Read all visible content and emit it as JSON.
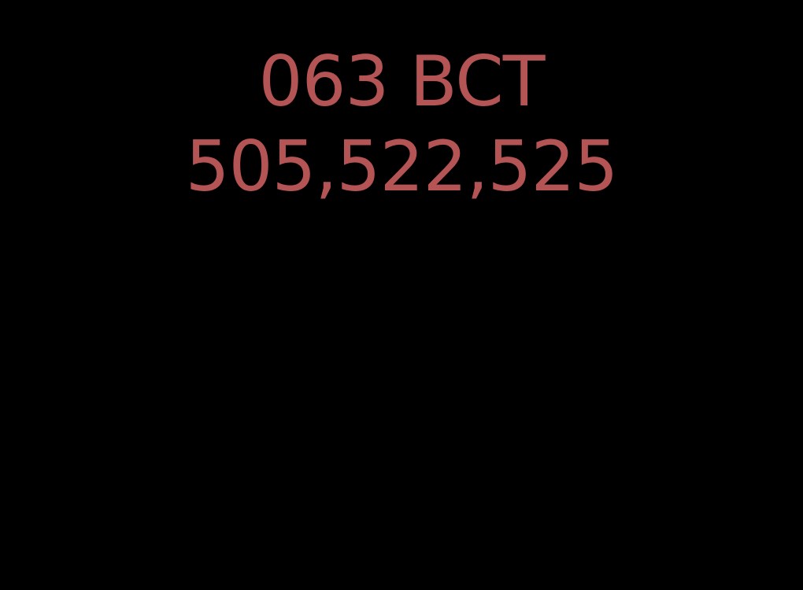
{
  "display": {
    "line_1": "063 BCT",
    "line_2": "505,522,525"
  },
  "colors": {
    "background": "#000000",
    "text": "#b55454"
  }
}
